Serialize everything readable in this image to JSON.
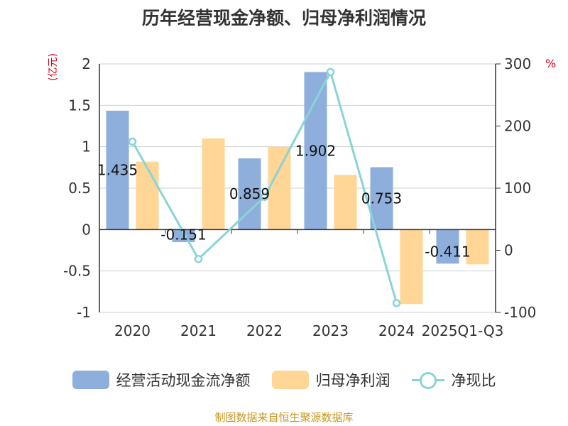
{
  "chart_data": {
    "type": "bar",
    "title": "历年经营现金净额、归母净利润情况",
    "categories": [
      "2020",
      "2021",
      "2022",
      "2023",
      "2024",
      "2025Q1-Q3"
    ],
    "y_left_unit": "(亿元)",
    "y_right_unit": "%",
    "y_left_range": [
      -1,
      2
    ],
    "y_left_ticks": [
      "2",
      "1.5",
      "1",
      "0.5",
      "0",
      "-0.5",
      "-1"
    ],
    "y_right_range": [
      -100,
      300
    ],
    "y_right_ticks": [
      "300",
      "200",
      "100",
      "0",
      "-100"
    ],
    "series": [
      {
        "name": "经营活动现金流净额",
        "color": "#8eaedb",
        "axis": "left",
        "type": "bar",
        "values": [
          1.435,
          -0.151,
          0.859,
          1.902,
          0.753,
          -0.411
        ],
        "labels": [
          "1.435",
          "-0.151",
          "0.859",
          "1.902",
          "0.753",
          "-0.411"
        ]
      },
      {
        "name": "归母净利润",
        "color": "#ffd696",
        "axis": "left",
        "type": "bar",
        "values": [
          0.82,
          1.1,
          1.0,
          0.66,
          -0.9,
          -0.42
        ]
      },
      {
        "name": "净现比",
        "color": "#8ad3d8",
        "axis": "right",
        "type": "line",
        "values": [
          175,
          -14,
          86,
          287,
          -85,
          null
        ]
      }
    ],
    "grid": true,
    "legend_position": "bottom"
  },
  "footer": "制图数据来自恒生聚源数据库"
}
